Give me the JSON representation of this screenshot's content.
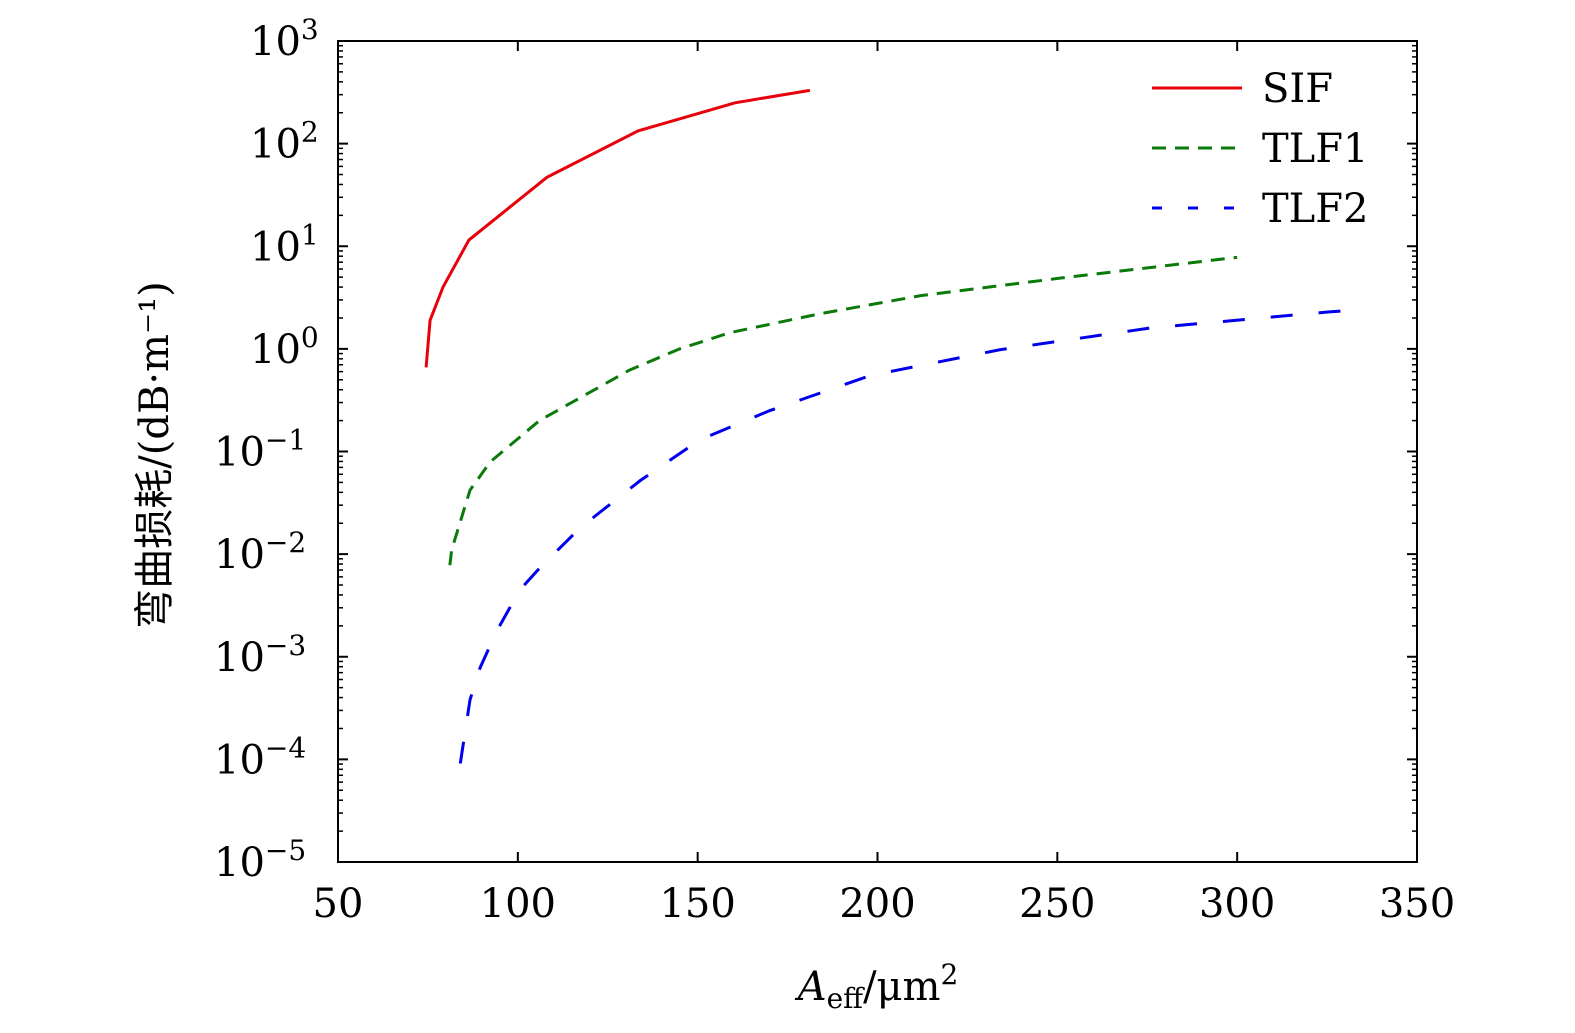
{
  "chart_data": {
    "type": "line",
    "title": "",
    "xlabel": {
      "main": "A",
      "sub": "eff",
      "rest": "/μm",
      "sup": "2"
    },
    "ylabel": "弯曲损耗/(dB·m⁻¹)",
    "xlim": [
      50,
      350
    ],
    "ylim": [
      1e-05,
      1000
    ],
    "yscale": "log",
    "grid": false,
    "legend_position": "top-right",
    "x_ticks": [
      {
        "value": 50,
        "label": "50"
      },
      {
        "value": 100,
        "label": "100"
      },
      {
        "value": 150,
        "label": "150"
      },
      {
        "value": 200,
        "label": "200"
      },
      {
        "value": 250,
        "label": "250"
      },
      {
        "value": 300,
        "label": "300"
      },
      {
        "value": 350,
        "label": "350"
      }
    ],
    "y_ticks": [
      {
        "exp": -5,
        "base": "10",
        "sup": "−5"
      },
      {
        "exp": -4,
        "base": "10",
        "sup": "−4"
      },
      {
        "exp": -3,
        "base": "10",
        "sup": "−3"
      },
      {
        "exp": -2,
        "base": "10",
        "sup": "−2"
      },
      {
        "exp": -1,
        "base": "10",
        "sup": "−1"
      },
      {
        "exp": 0,
        "base": "10",
        "sup": "0"
      },
      {
        "exp": 1,
        "base": "10",
        "sup": "1"
      },
      {
        "exp": 2,
        "base": "10",
        "sup": "2"
      },
      {
        "exp": 3,
        "base": "10",
        "sup": "3"
      }
    ],
    "series": [
      {
        "name": "SIF",
        "color": "#e8000b",
        "dash": "solid",
        "x": [
          74.5,
          75.6,
          79.2,
          86.4,
          108.1,
          133.4,
          160.4,
          181.2
        ],
        "y": [
          0.66,
          1.9,
          4.0,
          11.5,
          47,
          133,
          250,
          330
        ]
      },
      {
        "name": "TLF1",
        "color": "#0a7a0a",
        "dash": "short",
        "x": [
          81.1,
          81.6,
          86.7,
          92.3,
          106,
          131,
          145,
          159,
          184,
          212,
          251,
          300
        ],
        "y": [
          0.0078,
          0.011,
          0.042,
          0.079,
          0.2,
          0.62,
          1.0,
          1.44,
          2.2,
          3.3,
          4.9,
          7.8
        ]
      },
      {
        "name": "TLF2",
        "color": "#0000ee",
        "dash": "long",
        "x": [
          84,
          86.7,
          89.5,
          94.2,
          100.6,
          106.2,
          117.3,
          134,
          150.6,
          170,
          198,
          234,
          276,
          326,
          333.6
        ],
        "y": [
          9.12e-05,
          0.00038,
          0.00078,
          0.0018,
          0.0045,
          0.0074,
          0.018,
          0.052,
          0.13,
          0.25,
          0.55,
          0.98,
          1.6,
          2.3,
          2.4
        ]
      }
    ]
  }
}
